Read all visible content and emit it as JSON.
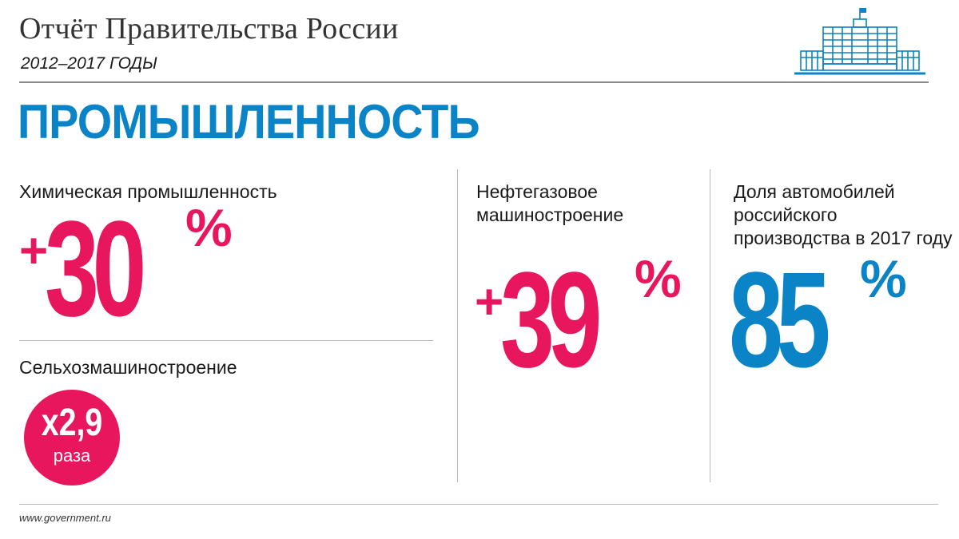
{
  "header": {
    "title": "Отчёт Правительства России",
    "subtitle": "2012–2017 ГОДЫ",
    "logo_icon": "government-building-icon"
  },
  "section_title": "ПРОМЫШЛЕННОСТЬ",
  "stats": {
    "chemical": {
      "label": "Химическая промышленность",
      "sign": "+",
      "value": "30",
      "unit": "%"
    },
    "agri_machinery": {
      "label": "Сельхозмашиностроение",
      "value": "х2,9",
      "unit": "раза"
    },
    "oil_gas": {
      "label_line1": "Нефтегазовое",
      "label_line2": "машиностроение",
      "sign": "+",
      "value": "39",
      "unit": "%"
    },
    "cars": {
      "label_line1": "Доля автомобилей",
      "label_line2": "российского",
      "label_line3": "производства в 2017 году",
      "value": "85",
      "unit": "%"
    }
  },
  "colors": {
    "accent_pink": "#e8175d",
    "accent_blue": "#0a84c6",
    "rule_gray": "#b8b8b8"
  },
  "footer": {
    "url": "www.government.ru"
  }
}
